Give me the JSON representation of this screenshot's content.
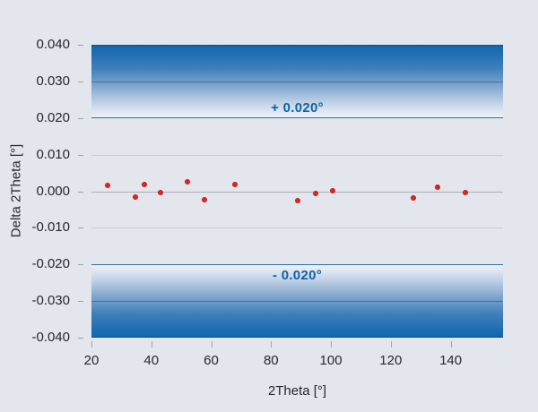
{
  "figure": {
    "background": "#e3e6ed"
  },
  "chart_data": {
    "type": "scatter",
    "title": "",
    "xlabel": "2Theta [°]",
    "ylabel": "Delta 2Theta [°]",
    "xlim": [
      20,
      157.5
    ],
    "ylim": [
      -0.04,
      0.04
    ],
    "grid": "horizontal only",
    "legend": "none",
    "x_ticks": [
      {
        "value": 20,
        "label": "20"
      },
      {
        "value": 40,
        "label": "40"
      },
      {
        "value": 60,
        "label": "60"
      },
      {
        "value": 80,
        "label": "80"
      },
      {
        "value": 100,
        "label": "100"
      },
      {
        "value": 120,
        "label": "120"
      },
      {
        "value": 140,
        "label": "140"
      }
    ],
    "y_ticks": [
      {
        "value": 0.04,
        "label": "0.040"
      },
      {
        "value": 0.03,
        "label": "0.030"
      },
      {
        "value": 0.02,
        "label": "0.020"
      },
      {
        "value": 0.01,
        "label": "0.010"
      },
      {
        "value": 0.0,
        "label": "0.000"
      },
      {
        "value": -0.01,
        "label": "-0.010"
      },
      {
        "value": -0.02,
        "label": "-0.020"
      },
      {
        "value": -0.03,
        "label": "-0.030"
      },
      {
        "value": -0.04,
        "label": "-0.040"
      }
    ],
    "gridlines": [
      {
        "value": 0.03,
        "style": "on-band"
      },
      {
        "value": 0.01,
        "style": "light"
      },
      {
        "value": 0.0,
        "style": "zero"
      },
      {
        "value": -0.01,
        "style": "light"
      },
      {
        "value": -0.03,
        "style": "on-band"
      }
    ],
    "tolerance_bands": [
      {
        "id": "upper",
        "from": 0.02,
        "to": 0.04,
        "label": "+ 0.020°"
      },
      {
        "id": "lower",
        "from": -0.04,
        "to": -0.02,
        "label": "- 0.020°"
      }
    ],
    "points": [
      {
        "x": 25.4,
        "y": 0.0017
      },
      {
        "x": 34.6,
        "y": -0.0015
      },
      {
        "x": 37.7,
        "y": 0.0019
      },
      {
        "x": 43.1,
        "y": -0.0004
      },
      {
        "x": 52.0,
        "y": 0.0026
      },
      {
        "x": 57.6,
        "y": -0.0024
      },
      {
        "x": 68.0,
        "y": 0.0019
      },
      {
        "x": 88.8,
        "y": -0.0025
      },
      {
        "x": 94.9,
        "y": -0.0006
      },
      {
        "x": 100.7,
        "y": 0.0002
      },
      {
        "x": 127.5,
        "y": -0.0019
      },
      {
        "x": 135.7,
        "y": 0.0012
      },
      {
        "x": 144.8,
        "y": -0.0004
      }
    ],
    "colors": {
      "point": "#e5261f",
      "point_edge": "#bd1a13",
      "band_dark_blue": "#1366af",
      "band_edge_line": "#2f6fa9",
      "band_label_text": "#0e62a8",
      "axis_text": "#26282c",
      "gridline_light": "#c6cbd4",
      "gridline_zero": "#a8aeb9",
      "background": "#e3e6ed"
    }
  }
}
